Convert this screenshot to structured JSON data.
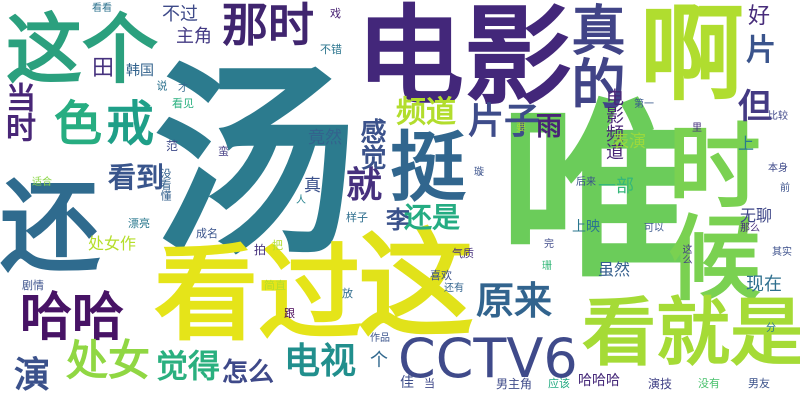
{
  "words": [
    {
      "text": "汤",
      "color": "#2c7b8e"
    },
    {
      "text": "唯",
      "color": "#6bcc5a"
    },
    {
      "text": "电影",
      "color": "#43277a"
    },
    {
      "text": "看过",
      "color": "#e5e419"
    },
    {
      "text": "这",
      "color": "#e1e21a"
    },
    {
      "text": "还",
      "color": "#2f6b8e"
    },
    {
      "text": "时候",
      "color": "#7ad151"
    },
    {
      "text": "啊",
      "color": "#b0dd2f"
    },
    {
      "text": "这个",
      "color": "#2ba07e"
    },
    {
      "text": "看就是",
      "color": "#a5db36"
    },
    {
      "text": "CCTV6",
      "color": "#3f4a8a"
    },
    {
      "text": "挺",
      "color": "#31668e"
    },
    {
      "text": "那时",
      "color": "#40256f"
    },
    {
      "text": "真的",
      "color": "#414487"
    },
    {
      "text": "哈哈",
      "color": "#471365"
    },
    {
      "text": "色",
      "color": "#27ad81"
    },
    {
      "text": "戒",
      "color": "#1f9f88"
    },
    {
      "text": "原来",
      "color": "#32648e"
    },
    {
      "text": "片子",
      "color": "#3e4c8a"
    },
    {
      "text": "频道",
      "color": "#b2dd2d"
    },
    {
      "text": "电视",
      "color": "#218f8d"
    },
    {
      "text": "处女",
      "color": "#90d743"
    },
    {
      "text": "觉得",
      "color": "#2ab07f"
    },
    {
      "text": "怎么",
      "color": "#3e4989"
    },
    {
      "text": "就",
      "color": "#46307e"
    },
    {
      "text": "当时",
      "color": "#482677"
    },
    {
      "text": "演",
      "color": "#3b518b"
    },
    {
      "text": "看到",
      "color": "#39558c"
    },
    {
      "text": "感觉",
      "color": "#3b528b"
    },
    {
      "text": "李",
      "color": "#3b528b"
    },
    {
      "text": "还是",
      "color": "#25ac82"
    },
    {
      "text": "雨",
      "color": "#482475"
    },
    {
      "text": "但",
      "color": "#443a83"
    },
    {
      "text": "片",
      "color": "#3a548c"
    },
    {
      "text": "好",
      "color": "#472c7a"
    },
    {
      "text": "不过",
      "color": "#3e4a89"
    },
    {
      "text": "主角",
      "color": "#443b84"
    },
    {
      "text": "田",
      "color": "#46327e"
    },
    {
      "text": "电影频道",
      "color": "#482576"
    },
    {
      "text": "竟然",
      "color": "#33638d"
    },
    {
      "text": "一部",
      "color": "#35b779"
    },
    {
      "text": "表演",
      "color": "#9bd93c"
    },
    {
      "text": "处女作",
      "color": "#b5de2b"
    },
    {
      "text": "无聊",
      "color": "#3f4788"
    },
    {
      "text": "现在",
      "color": "#2e6f8e"
    },
    {
      "text": "虽然",
      "color": "#355f8d"
    },
    {
      "text": "真",
      "color": "#3b518b"
    },
    {
      "text": "上映",
      "color": "#2a768e"
    },
    {
      "text": "上",
      "color": "#287c8e"
    },
    {
      "text": "韩国",
      "color": "#33638d"
    },
    {
      "text": "个",
      "color": "#31688e"
    },
    {
      "text": "哈哈哈",
      "color": "#472a7a"
    },
    {
      "text": "男主角",
      "color": "#3e4a89"
    },
    {
      "text": "演技",
      "color": "#414287"
    },
    {
      "text": "戏",
      "color": "#482173"
    },
    {
      "text": "不错",
      "color": "#2b758e"
    },
    {
      "text": "看看",
      "color": "#2c728e"
    },
    {
      "text": "看见",
      "color": "#2ab07f"
    },
    {
      "text": "说",
      "color": "#2c728e"
    },
    {
      "text": "才",
      "color": "#31688e"
    },
    {
      "text": "没看懂",
      "color": "#34618d"
    },
    {
      "text": "范",
      "color": "#3e4a89"
    },
    {
      "text": "蛮",
      "color": "#433d84"
    },
    {
      "text": "漂亮",
      "color": "#2a788e"
    },
    {
      "text": "适合",
      "color": "#8bd646"
    },
    {
      "text": "成名",
      "color": "#3a548c"
    },
    {
      "text": "剧情",
      "color": "#3b518b"
    },
    {
      "text": "拍",
      "color": "#46327e"
    },
    {
      "text": "把",
      "color": "#b2dd2d"
    },
    {
      "text": "人",
      "color": "#26828e"
    },
    {
      "text": "样子",
      "color": "#2e6e8e"
    },
    {
      "text": "气质",
      "color": "#46317e"
    },
    {
      "text": "完",
      "color": "#3e4989"
    },
    {
      "text": "喜欢",
      "color": "#3b528b"
    },
    {
      "text": "还有",
      "color": "#32648e"
    },
    {
      "text": "放",
      "color": "#2f6c8e"
    },
    {
      "text": "简直",
      "color": "#b5de2b"
    },
    {
      "text": "跟",
      "color": "#440154"
    },
    {
      "text": "作品",
      "color": "#3a548c"
    },
    {
      "text": "佳",
      "color": "#3d4d8a"
    },
    {
      "text": "当",
      "color": "#3f4889"
    },
    {
      "text": "应该",
      "color": "#25ab82"
    },
    {
      "text": "没有",
      "color": "#4ac16d"
    },
    {
      "text": "男友",
      "color": "#3b528b"
    },
    {
      "text": "分",
      "color": "#2a768e"
    },
    {
      "text": "可以",
      "color": "#39568c"
    },
    {
      "text": "那么",
      "color": "#472d7b"
    },
    {
      "text": "其实",
      "color": "#3c508b"
    },
    {
      "text": "这么",
      "color": "#433e85"
    },
    {
      "text": "珊",
      "color": "#35b779"
    },
    {
      "text": "后来",
      "color": "#3b528b"
    },
    {
      "text": "本身",
      "color": "#3e4989"
    },
    {
      "text": "前",
      "color": "#3b518b"
    },
    {
      "text": "比较",
      "color": "#3f4788"
    },
    {
      "text": "里",
      "color": "#46307e"
    },
    {
      "text": "第一",
      "color": "#38598c"
    },
    {
      "text": "要",
      "color": "#a8db34"
    },
    {
      "text": "璇",
      "color": "#3b528b"
    }
  ]
}
